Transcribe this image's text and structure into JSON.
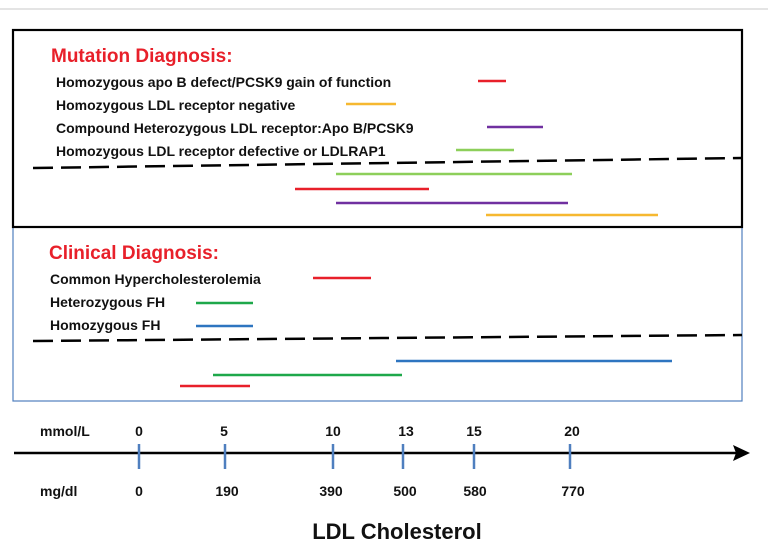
{
  "colors": {
    "red": "#e8202a",
    "orange": "#f6b830",
    "purple": "#7030a0",
    "lightgreen": "#8dcf5a",
    "green": "#1ea84a",
    "blue": "#2e75c0",
    "frame_blue": "#4f7fbf"
  },
  "mutation": {
    "title": "Mutation Diagnosis:",
    "legend": [
      {
        "label": "Homozygous apo B defect/PCSK9 gain of function",
        "color": "#e8202a"
      },
      {
        "label": "Homozygous LDL receptor negative",
        "color": "#f6b830"
      },
      {
        "label": "Compound Heterozygous LDL receptor:Apo B/PCSK9",
        "color": "#7030a0"
      },
      {
        "label": "Homozygous LDL receptor defective or LDLRAP1",
        "color": "#8dcf5a"
      }
    ]
  },
  "clinical": {
    "title": "Clinical  Diagnosis:",
    "legend": [
      {
        "label": "Common Hypercholesterolemia",
        "color": "#e8202a"
      },
      {
        "label": "Heterozygous FH",
        "color": "#1ea84a"
      },
      {
        "label": "Homozygous  FH",
        "color": "#2e75c0"
      }
    ]
  },
  "axis": {
    "unit_top": "mmol/L",
    "unit_bottom": "mg/dl",
    "title": "LDL Cholesterol",
    "ticks": [
      {
        "mmol": "0",
        "mgdl": "0"
      },
      {
        "mmol": "5",
        "mgdl": "190"
      },
      {
        "mmol": "10",
        "mgdl": "390"
      },
      {
        "mmol": "13",
        "mgdl": "500"
      },
      {
        "mmol": "15",
        "mgdl": "580"
      },
      {
        "mmol": "20",
        "mgdl": "770"
      }
    ]
  }
}
